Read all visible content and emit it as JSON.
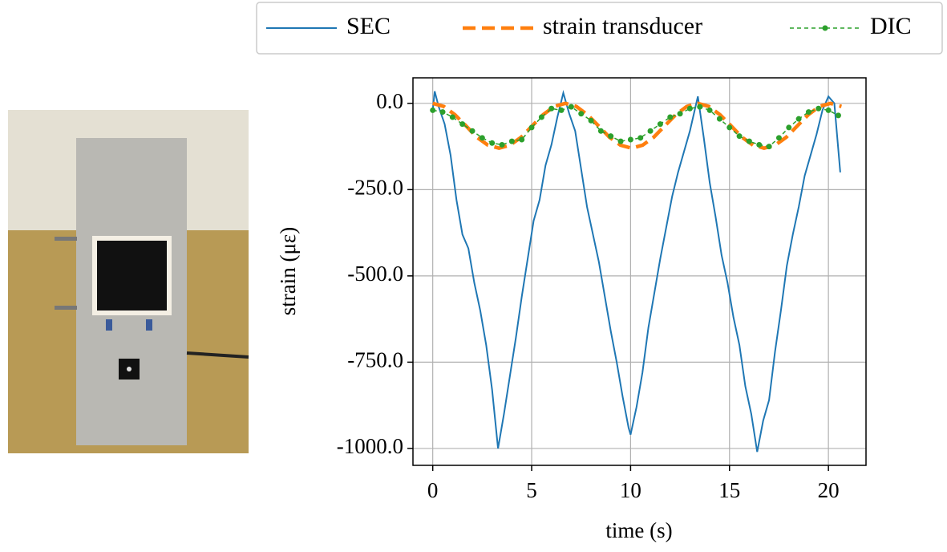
{
  "chart_data": {
    "type": "line",
    "xlabel": "time (s)",
    "ylabel": "strain (με)",
    "xlim": [
      -1.0,
      21.9
    ],
    "ylim": [
      -1049,
      74
    ],
    "xticks": [
      0,
      5,
      10,
      15,
      20
    ],
    "yticks": [
      {
        "value": 0,
        "label": "0.0"
      },
      {
        "value": -250,
        "label": "-250.0"
      },
      {
        "value": -500,
        "label": "-500.0"
      },
      {
        "value": -750,
        "label": "-750.0"
      },
      {
        "value": -1000,
        "label": "-1000.0"
      }
    ],
    "grid": true,
    "legend": "top",
    "series": [
      {
        "name": "SEC",
        "color": "#1f77b4",
        "line_style": "solid",
        "marker": false,
        "x": [
          0,
          0.1,
          0.3,
          0.6,
          0.9,
          1.2,
          1.5,
          1.8,
          2.1,
          2.4,
          2.7,
          3.0,
          3.3,
          3.6,
          3.9,
          4.2,
          4.5,
          4.8,
          5.1,
          5.4,
          5.7,
          6.0,
          6.3,
          6.6,
          6.9,
          7.2,
          7.5,
          7.8,
          8.1,
          8.4,
          8.7,
          9.0,
          9.3,
          9.6,
          9.9,
          10.0,
          10.3,
          10.6,
          10.9,
          11.2,
          11.5,
          11.8,
          12.1,
          12.4,
          12.7,
          13.0,
          13.4,
          13.7,
          14.0,
          14.3,
          14.6,
          14.9,
          15.2,
          15.5,
          15.8,
          16.1,
          16.4,
          16.7,
          17.0,
          17.3,
          17.6,
          17.9,
          18.2,
          18.5,
          18.8,
          19.1,
          19.4,
          19.7,
          20.0,
          20.3,
          20.6
        ],
        "values": [
          -20,
          35,
          -10,
          -60,
          -150,
          -280,
          -380,
          -420,
          -520,
          -600,
          -700,
          -830,
          -1000,
          -900,
          -790,
          -680,
          -560,
          -450,
          -340,
          -280,
          -180,
          -120,
          -40,
          30,
          -30,
          -80,
          -190,
          -300,
          -380,
          -460,
          -560,
          -660,
          -750,
          -850,
          -940,
          -960,
          -880,
          -780,
          -650,
          -550,
          -450,
          -360,
          -270,
          -200,
          -140,
          -80,
          20,
          -100,
          -230,
          -330,
          -440,
          -520,
          -620,
          -700,
          -820,
          -900,
          -1010,
          -920,
          -860,
          -720,
          -600,
          -470,
          -380,
          -300,
          -210,
          -150,
          -90,
          -20,
          20,
          0,
          -200
        ]
      },
      {
        "name": "strain transducer",
        "color": "#ff7f0e",
        "line_style": "dashed",
        "marker": false,
        "x": [
          0,
          0.56,
          1.12,
          1.68,
          2.23,
          2.79,
          3.35,
          3.91,
          4.47,
          5.03,
          5.58,
          6.14,
          6.7,
          7.26,
          7.82,
          8.38,
          8.93,
          9.49,
          10.05,
          10.61,
          11.17,
          11.73,
          12.28,
          12.84,
          13.4,
          13.96,
          14.52,
          15.08,
          15.63,
          16.19,
          16.75,
          17.31,
          17.87,
          18.43,
          18.98,
          19.54,
          20.1,
          20.66
        ],
        "values": [
          0,
          -9,
          -33,
          -65,
          -98,
          -121,
          -130,
          -121,
          -98,
          -65,
          -33,
          -9,
          0,
          -9,
          -33,
          -65,
          -98,
          -121,
          -130,
          -121,
          -98,
          -65,
          -33,
          -9,
          0,
          -9,
          -33,
          -65,
          -98,
          -121,
          -130,
          -121,
          -98,
          -65,
          -33,
          -9,
          0,
          -9
        ]
      },
      {
        "name": "DIC",
        "color": "#2ca02c",
        "line_style": "dotted",
        "marker": true,
        "x": [
          0,
          0.5,
          1,
          1.5,
          2,
          2.5,
          3,
          3.5,
          4,
          4.5,
          5,
          5.5,
          6,
          6.5,
          7,
          7.5,
          8,
          8.5,
          9,
          9.5,
          10,
          10.5,
          11,
          11.5,
          12,
          12.5,
          13,
          13.5,
          14,
          14.5,
          15,
          15.5,
          16,
          16.5,
          17,
          17.5,
          18,
          18.5,
          19,
          19.5,
          20,
          20.5
        ],
        "values": [
          -20,
          -25,
          -40,
          -60,
          -80,
          -100,
          -115,
          -120,
          -110,
          -105,
          -70,
          -40,
          -15,
          -20,
          -10,
          -30,
          -50,
          -80,
          -95,
          -110,
          -105,
          -100,
          -80,
          -60,
          -40,
          -30,
          -15,
          -10,
          -20,
          -45,
          -70,
          -95,
          -110,
          -120,
          -125,
          -100,
          -70,
          -45,
          -25,
          -15,
          -20,
          -35
        ]
      }
    ]
  }
}
